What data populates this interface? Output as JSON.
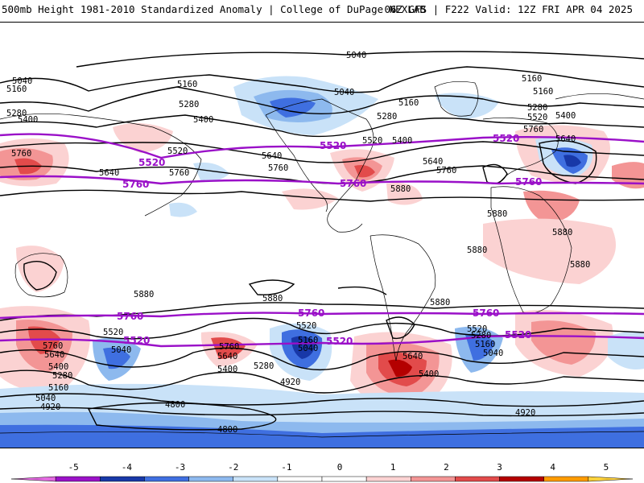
{
  "header": {
    "title_left": "500mb Height 1981-2010 Standardized Anomaly | College of DuPage NEXLAB",
    "title_right": "06Z GFS | F222 Valid: 12Z FRI APR 04 2025"
  },
  "contour_labels_black": [
    "5040",
    "5160",
    "5280",
    "5400",
    "5520",
    "5640",
    "5760",
    "5880",
    "4920",
    "4800"
  ],
  "contour_labels_purple": [
    "5520",
    "5760"
  ],
  "colors": {
    "contour": "#000000",
    "highlight_contour": "#9a10c8",
    "coastline": "#000000",
    "anomaly_pos_1": "#fbd2d2",
    "anomaly_pos_2": "#f39595",
    "anomaly_pos_3": "#e24b4b",
    "anomaly_pos_4": "#b40000",
    "anomaly_neg_1": "#c9e2f8",
    "anomaly_neg_2": "#8db9ee",
    "anomaly_neg_3": "#3f6fe0",
    "anomaly_neg_4": "#1838a8"
  },
  "colorbar": {
    "ticks": [
      "-5",
      "-4",
      "-3",
      "-2",
      "-1",
      "0",
      "1",
      "2",
      "3",
      "4",
      "5"
    ],
    "colors": [
      "#e36ae0",
      "#9b12c8",
      "#1838a8",
      "#3f6fe0",
      "#8db9ee",
      "#c9e2f8",
      "#ffffff",
      "#ffffff",
      "#fbd2d2",
      "#f39595",
      "#e24b4b",
      "#b40000",
      "#ff9b00",
      "#ffd23c"
    ]
  }
}
